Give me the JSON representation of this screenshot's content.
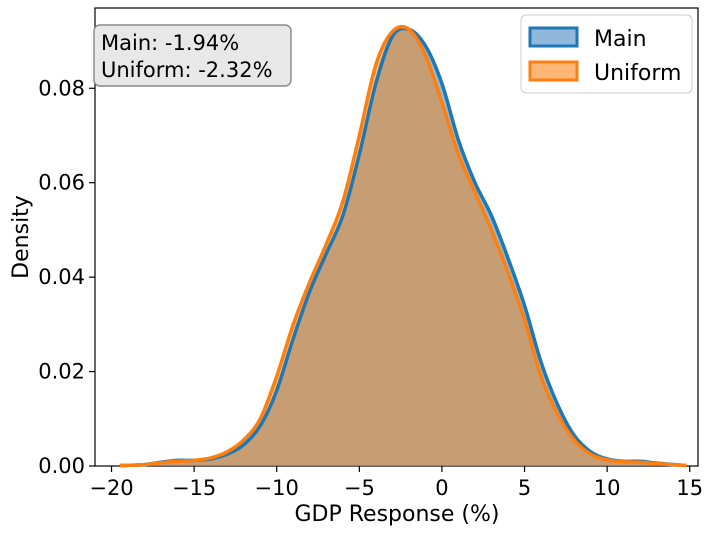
{
  "chart_data": {
    "type": "area",
    "title": "",
    "xlabel": "GDP Response (%)",
    "ylabel": "Density",
    "xlim": [
      -21,
      15.5
    ],
    "ylim": [
      0,
      0.097
    ],
    "xticks": [
      -20,
      -15,
      -10,
      -5,
      0,
      5,
      10,
      15
    ],
    "xtick_labels": [
      "−20",
      "−15",
      "−10",
      "−5",
      "0",
      "5",
      "10",
      "15"
    ],
    "yticks": [
      0,
      0.02,
      0.04,
      0.06,
      0.08
    ],
    "ytick_labels": [
      "0.00",
      "0.02",
      "0.04",
      "0.06",
      "0.08"
    ],
    "grid": false,
    "legend_position": "top-right",
    "series": [
      {
        "name": "Main",
        "line_color": "#1f77b4",
        "fill_color": "#8fb8dc",
        "mean_label": "Main: -1.94%",
        "x": [
          -19.5,
          -18,
          -17,
          -16,
          -15,
          -14,
          -13,
          -12,
          -11,
          -10,
          -9,
          -8,
          -7,
          -6,
          -5,
          -4,
          -3,
          -2,
          -1,
          0,
          1,
          2,
          3,
          4,
          5,
          6,
          7,
          8,
          9,
          10,
          11,
          12,
          13,
          14.8
        ],
        "y": [
          0.0001,
          0.0003,
          0.0008,
          0.0012,
          0.0012,
          0.0015,
          0.0025,
          0.0045,
          0.0085,
          0.016,
          0.027,
          0.037,
          0.045,
          0.053,
          0.066,
          0.081,
          0.091,
          0.0925,
          0.089,
          0.081,
          0.069,
          0.06,
          0.053,
          0.044,
          0.034,
          0.022,
          0.013,
          0.0065,
          0.003,
          0.0015,
          0.001,
          0.001,
          0.0006,
          0.0001
        ]
      },
      {
        "name": "Uniform",
        "line_color": "#ff7f0e",
        "fill_color": "#ffb777",
        "mean_label": "Uniform: -2.32%",
        "x": [
          -19.5,
          -18,
          -17,
          -16,
          -15,
          -14,
          -13,
          -12,
          -11,
          -10,
          -9,
          -8,
          -7,
          -6,
          -5,
          -4,
          -3,
          -2,
          -1,
          0,
          1,
          2,
          3,
          4,
          5,
          6,
          7,
          8,
          9,
          10,
          11,
          12,
          13,
          14.8
        ],
        "y": [
          0.0001,
          0.0003,
          0.0007,
          0.001,
          0.0012,
          0.0017,
          0.003,
          0.0055,
          0.01,
          0.019,
          0.03,
          0.039,
          0.047,
          0.056,
          0.07,
          0.085,
          0.092,
          0.0925,
          0.087,
          0.077,
          0.066,
          0.058,
          0.05,
          0.041,
          0.031,
          0.019,
          0.011,
          0.0055,
          0.0025,
          0.0013,
          0.0009,
          0.0008,
          0.0005,
          0.0001
        ]
      }
    ],
    "annotation_lines": [
      "Main: -1.94%",
      "Uniform: -2.32%"
    ]
  }
}
